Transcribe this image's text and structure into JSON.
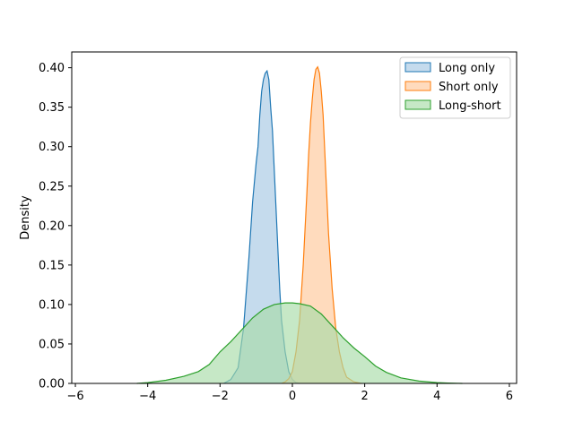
{
  "chart_data": {
    "type": "area",
    "title": "",
    "xlabel": "",
    "ylabel": "Density",
    "xlim": [
      -6.1,
      6.2
    ],
    "ylim": [
      0,
      0.42
    ],
    "xticks": [
      -6,
      -4,
      -2,
      0,
      2,
      4,
      6
    ],
    "xtick_labels": [
      "−6",
      "−4",
      "−2",
      "0",
      "2",
      "4",
      "6"
    ],
    "yticks": [
      0.0,
      0.05,
      0.1,
      0.15,
      0.2,
      0.25,
      0.3,
      0.35,
      0.4
    ],
    "ytick_labels": [
      "0.00",
      "0.05",
      "0.10",
      "0.15",
      "0.20",
      "0.25",
      "0.30",
      "0.35",
      "0.40"
    ],
    "grid": false,
    "legend_position": "top-right",
    "series": [
      {
        "name": "Long only",
        "color": "#1f77b4",
        "fill": "#a6c8e4",
        "x": [
          -1.9,
          -1.7,
          -1.5,
          -1.35,
          -1.2,
          -1.1,
          -1.0,
          -0.95,
          -0.9,
          -0.85,
          -0.8,
          -0.75,
          -0.7,
          -0.65,
          -0.6,
          -0.55,
          -0.5,
          -0.45,
          -0.4,
          -0.35,
          -0.3,
          -0.2,
          -0.1,
          0.0,
          0.1,
          0.2
        ],
        "y": [
          0.0,
          0.005,
          0.02,
          0.07,
          0.16,
          0.23,
          0.28,
          0.3,
          0.34,
          0.37,
          0.385,
          0.393,
          0.396,
          0.385,
          0.35,
          0.32,
          0.27,
          0.22,
          0.17,
          0.12,
          0.08,
          0.04,
          0.015,
          0.005,
          0.001,
          0.0
        ]
      },
      {
        "name": "Short only",
        "color": "#ff7f0e",
        "fill": "#ffc89a",
        "x": [
          -0.3,
          -0.2,
          -0.1,
          0.0,
          0.1,
          0.2,
          0.3,
          0.4,
          0.45,
          0.5,
          0.55,
          0.6,
          0.65,
          0.7,
          0.75,
          0.8,
          0.85,
          0.9,
          0.95,
          1.0,
          1.1,
          1.2,
          1.3,
          1.4,
          1.5,
          1.7,
          1.9
        ],
        "y": [
          0.0,
          0.002,
          0.006,
          0.015,
          0.04,
          0.08,
          0.15,
          0.24,
          0.29,
          0.33,
          0.36,
          0.385,
          0.398,
          0.401,
          0.393,
          0.37,
          0.34,
          0.29,
          0.24,
          0.19,
          0.12,
          0.07,
          0.04,
          0.02,
          0.008,
          0.002,
          0.0
        ]
      },
      {
        "name": "Long-short",
        "color": "#2ca02c",
        "fill": "#a8dba8",
        "x": [
          -4.3,
          -4.0,
          -3.5,
          -3.0,
          -2.6,
          -2.3,
          -2.0,
          -1.7,
          -1.4,
          -1.1,
          -0.8,
          -0.5,
          -0.2,
          0.0,
          0.2,
          0.5,
          0.8,
          1.1,
          1.4,
          1.7,
          2.0,
          2.3,
          2.6,
          3.0,
          3.5,
          4.0,
          4.3,
          4.7
        ],
        "y": [
          0.0,
          0.001,
          0.004,
          0.009,
          0.015,
          0.024,
          0.04,
          0.053,
          0.068,
          0.083,
          0.094,
          0.1,
          0.102,
          0.102,
          0.101,
          0.098,
          0.088,
          0.073,
          0.058,
          0.045,
          0.034,
          0.022,
          0.014,
          0.007,
          0.003,
          0.001,
          0.0005,
          0.0
        ]
      }
    ]
  }
}
